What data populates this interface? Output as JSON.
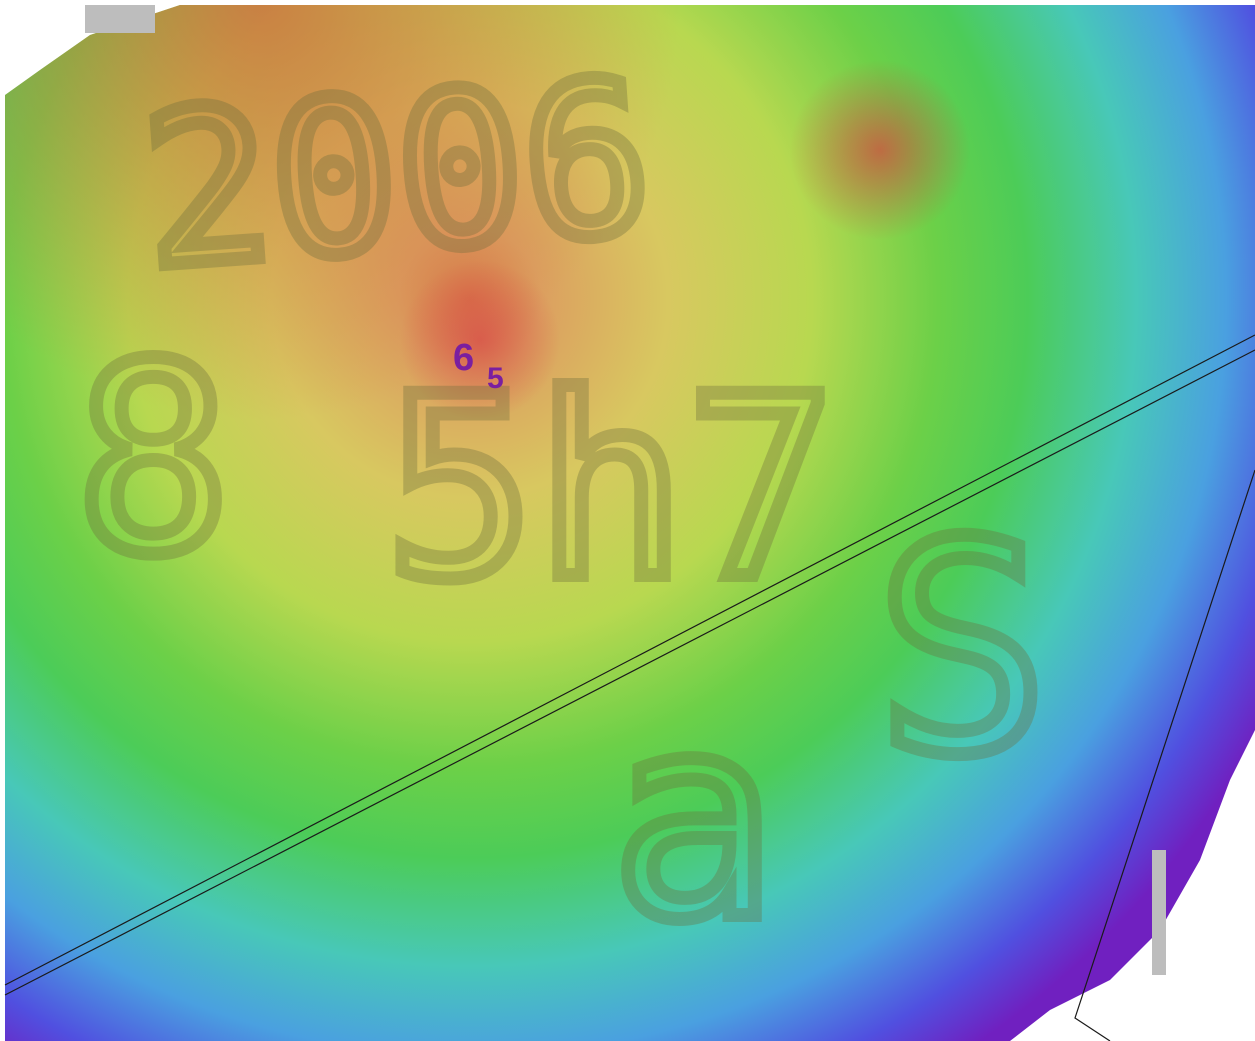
{
  "labels": {
    "depth_major": "6",
    "depth_minor": "5"
  },
  "overlay_text": [
    "2006",
    "8",
    "5h7",
    "S",
    "a"
  ]
}
